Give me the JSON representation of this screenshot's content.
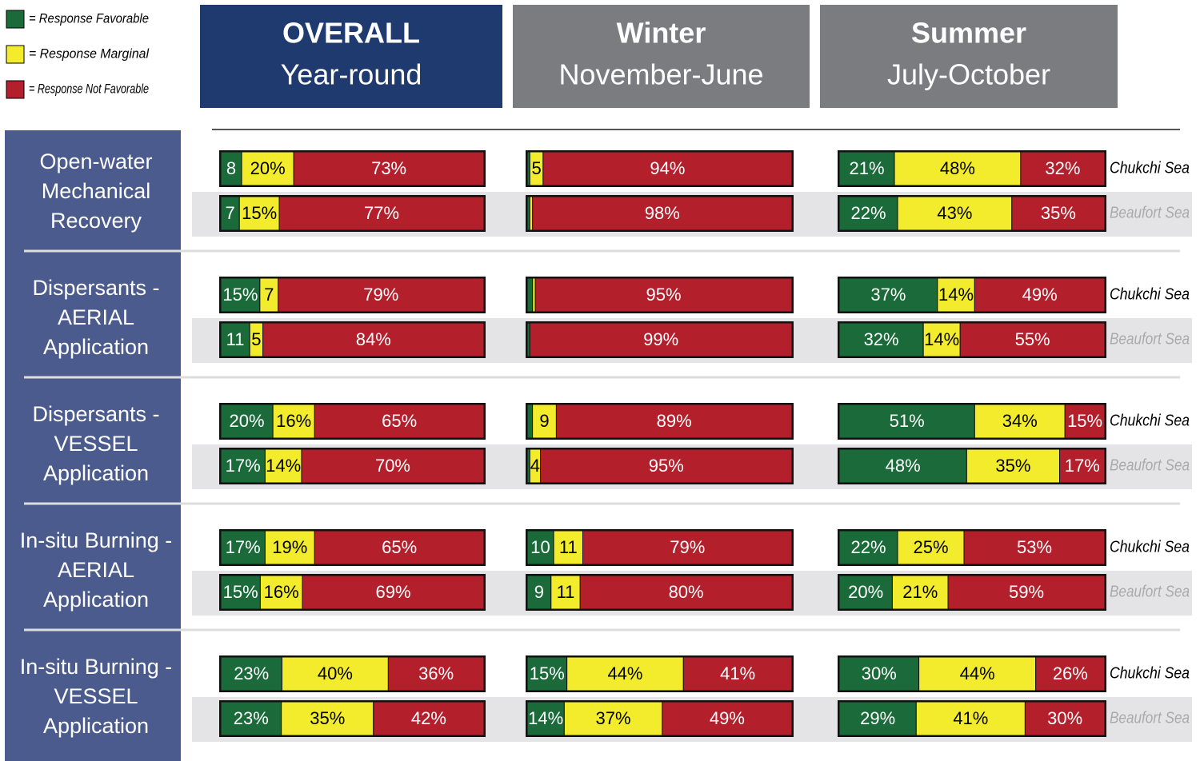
{
  "legend": [
    {
      "label": "= Response Favorable",
      "color": "#1b6b3a"
    },
    {
      "label": "= Response Marginal",
      "color": "#f3ec2c"
    },
    {
      "label": "= Response Not Favorable",
      "color": "#b41f2c"
    }
  ],
  "columns": [
    {
      "title": "OVERALL",
      "subtitle": "Year-round",
      "color": "#1f3a6e"
    },
    {
      "title": "Winter",
      "subtitle": "November-June",
      "color": "#7b7c80"
    },
    {
      "title": "Summer",
      "subtitle": "July-October",
      "color": "#7b7c80"
    }
  ],
  "seas": [
    "Chukchi Sea",
    "Beaufort Sea"
  ],
  "rows": [
    {
      "label": [
        "Open-water",
        "Mechanical",
        "Recovery"
      ],
      "bars": [
        [
          {
            "values": [
              8,
              20,
              73
            ],
            "value_labels": [
              "8",
              "20%",
              "73%"
            ]
          },
          {
            "values": [
              7,
              15,
              77
            ],
            "value_labels": [
              "7",
              "15%",
              "77%"
            ]
          }
        ],
        [
          {
            "values": [
              1,
              5,
              94
            ],
            "value_labels": [
              null,
              "5",
              "94%"
            ]
          },
          {
            "values": [
              1,
              1,
              98
            ],
            "value_labels": [
              null,
              null,
              "98%"
            ]
          }
        ],
        [
          {
            "values": [
              21,
              48,
              32
            ],
            "value_labels": [
              "21%",
              "48%",
              "32%"
            ]
          },
          {
            "values": [
              22,
              43,
              35
            ],
            "value_labels": [
              "22%",
              "43%",
              "35%"
            ]
          }
        ]
      ]
    },
    {
      "label": [
        "Dispersants -",
        "AERIAL",
        "Application"
      ],
      "bars": [
        [
          {
            "values": [
              15,
              7,
              79
            ],
            "value_labels": [
              "15%",
              "7",
              "79%"
            ]
          },
          {
            "values": [
              11,
              5,
              84
            ],
            "value_labels": [
              "11",
              "5",
              "84%"
            ]
          }
        ],
        [
          {
            "values": [
              2,
              1,
              95
            ],
            "value_labels": [
              null,
              null,
              "95%"
            ]
          },
          {
            "values": [
              1,
              0,
              99
            ],
            "value_labels": [
              null,
              null,
              "99%"
            ]
          }
        ],
        [
          {
            "values": [
              37,
              14,
              49
            ],
            "value_labels": [
              "37%",
              "14%",
              "49%"
            ]
          },
          {
            "values": [
              32,
              14,
              55
            ],
            "value_labels": [
              "32%",
              "14%",
              "55%"
            ]
          }
        ]
      ]
    },
    {
      "label": [
        "Dispersants -",
        "VESSEL",
        "Application"
      ],
      "bars": [
        [
          {
            "values": [
              20,
              16,
              65
            ],
            "value_labels": [
              "20%",
              "16%",
              "65%"
            ]
          },
          {
            "values": [
              17,
              14,
              70
            ],
            "value_labels": [
              "17%",
              "14%",
              "70%"
            ]
          }
        ],
        [
          {
            "values": [
              2,
              9,
              89
            ],
            "value_labels": [
              null,
              "9",
              "89%"
            ]
          },
          {
            "values": [
              1,
              4,
              95
            ],
            "value_labels": [
              null,
              "4",
              "95%"
            ]
          }
        ],
        [
          {
            "values": [
              51,
              34,
              15
            ],
            "value_labels": [
              "51%",
              "34%",
              "15%"
            ]
          },
          {
            "values": [
              48,
              35,
              17
            ],
            "value_labels": [
              "48%",
              "35%",
              "17%"
            ]
          }
        ]
      ]
    },
    {
      "label": [
        "In-situ Burning -",
        "AERIAL",
        "Application"
      ],
      "bars": [
        [
          {
            "values": [
              17,
              19,
              65
            ],
            "value_labels": [
              "17%",
              "19%",
              "65%"
            ]
          },
          {
            "values": [
              15,
              16,
              69
            ],
            "value_labels": [
              "15%",
              "16%",
              "69%"
            ]
          }
        ],
        [
          {
            "values": [
              10,
              11,
              79
            ],
            "value_labels": [
              "10",
              "11",
              "79%"
            ]
          },
          {
            "values": [
              9,
              11,
              80
            ],
            "value_labels": [
              "9",
              "11",
              "80%"
            ]
          }
        ],
        [
          {
            "values": [
              22,
              25,
              53
            ],
            "value_labels": [
              "22%",
              "25%",
              "53%"
            ]
          },
          {
            "values": [
              20,
              21,
              59
            ],
            "value_labels": [
              "20%",
              "21%",
              "59%"
            ]
          }
        ]
      ]
    },
    {
      "label": [
        "In-situ Burning -",
        "VESSEL",
        "Application"
      ],
      "bars": [
        [
          {
            "values": [
              23,
              40,
              36
            ],
            "value_labels": [
              "23%",
              "40%",
              "36%"
            ]
          },
          {
            "values": [
              23,
              35,
              42
            ],
            "value_labels": [
              "23%",
              "35%",
              "42%"
            ]
          }
        ],
        [
          {
            "values": [
              15,
              44,
              41
            ],
            "value_labels": [
              "15%",
              "44%",
              "41%"
            ]
          },
          {
            "values": [
              14,
              37,
              49
            ],
            "value_labels": [
              "14%",
              "37%",
              "49%"
            ]
          }
        ],
        [
          {
            "values": [
              30,
              44,
              26
            ],
            "value_labels": [
              "30%",
              "44%",
              "26%"
            ]
          },
          {
            "values": [
              29,
              41,
              30
            ],
            "value_labels": [
              "29%",
              "41%",
              "30%"
            ]
          }
        ]
      ]
    }
  ]
}
